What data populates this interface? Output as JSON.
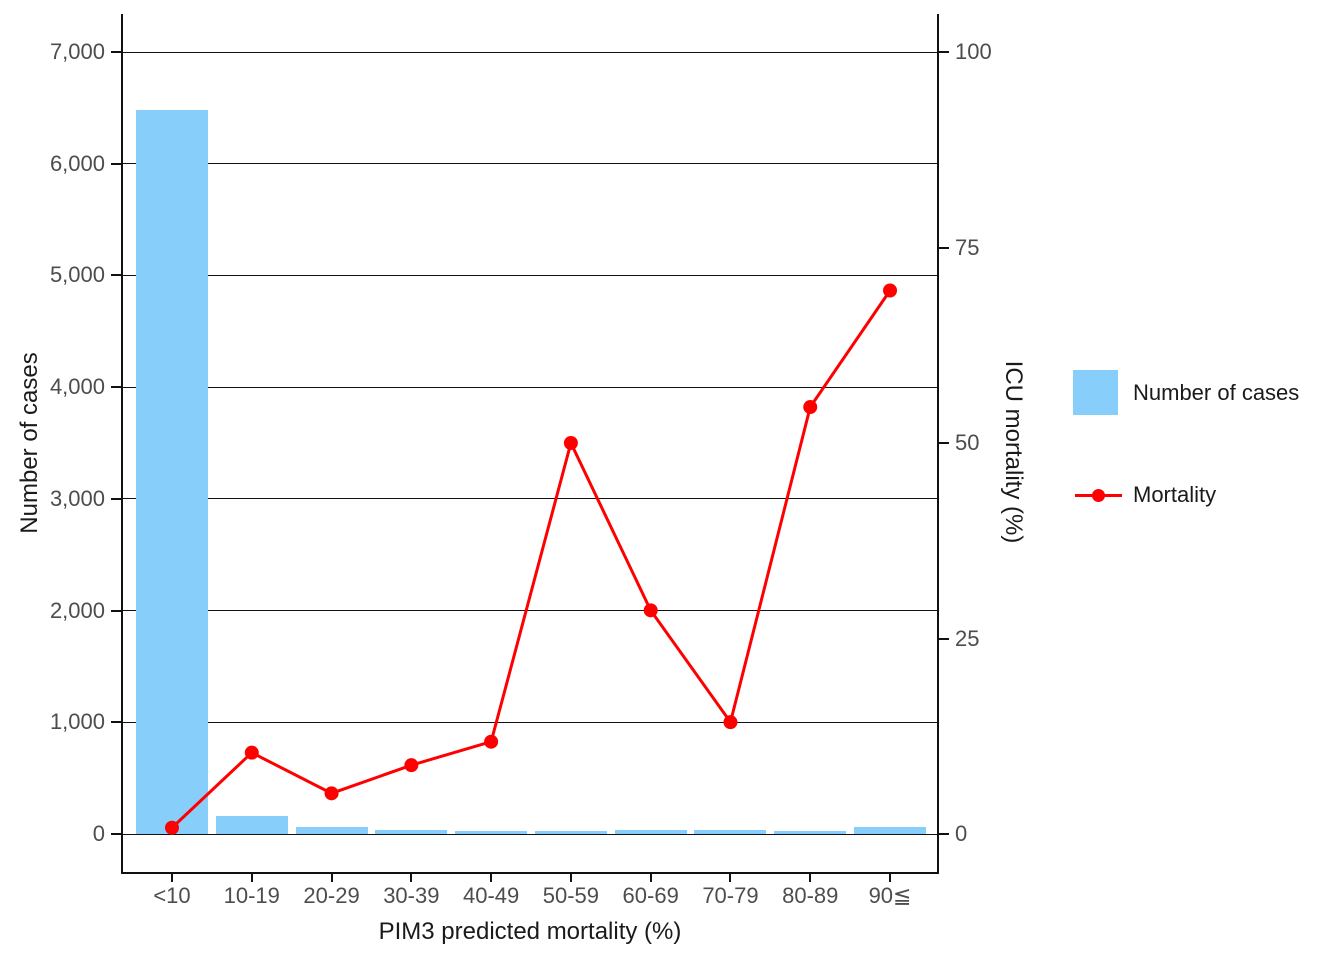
{
  "chart_data": {
    "type": "bar+line",
    "title": "",
    "xlabel": "PIM3 predicted mortality (%)",
    "ylabel_left": "Number of cases",
    "ylabel_right": "ICU mortality (%)",
    "categories": [
      "<10",
      "10-19",
      "20-29",
      "30-39",
      "40-49",
      "50-59",
      "60-69",
      "70-79",
      "80-89",
      "90≦"
    ],
    "series": [
      {
        "name": "Number of cases",
        "type": "bar",
        "axis": "left",
        "color": "#87CEFA",
        "values": [
          6480,
          165,
          60,
          40,
          30,
          25,
          40,
          40,
          25,
          60
        ]
      },
      {
        "name": "Mortality",
        "type": "line",
        "axis": "right",
        "color": "#FF0000",
        "values": [
          0.8,
          10.4,
          5.2,
          8.8,
          11.8,
          50.0,
          28.6,
          14.3,
          54.6,
          69.5
        ]
      }
    ],
    "y_left_range": [
      0,
      7000
    ],
    "y_left_tick_values": [
      0,
      1000,
      2000,
      3000,
      4000,
      5000,
      6000,
      7000
    ],
    "y_left_tick_labels": [
      "0",
      "1,000",
      "2,000",
      "3,000",
      "4,000",
      "5,000",
      "6,000",
      "7,000"
    ],
    "y_right_range": [
      0,
      100
    ],
    "y_right_tick_values": [
      0,
      25,
      50,
      75,
      100
    ],
    "y_right_tick_labels": [
      "0",
      "25",
      "50",
      "75",
      "100"
    ],
    "grid": "horizontal major gridlines, black, on white background",
    "legend_position": "right"
  },
  "legend": {
    "items": [
      {
        "label": "Number of cases",
        "swatch": "blue-square",
        "color": "#87CEFA"
      },
      {
        "label": "Mortality",
        "swatch": "red-line-with-dot",
        "color": "#FF0000"
      }
    ]
  },
  "colors": {
    "bar_fill": "#87CEFA",
    "line_stroke": "#FF0000",
    "tick_label": "#4d4d4d",
    "axis_line": "#111111"
  }
}
